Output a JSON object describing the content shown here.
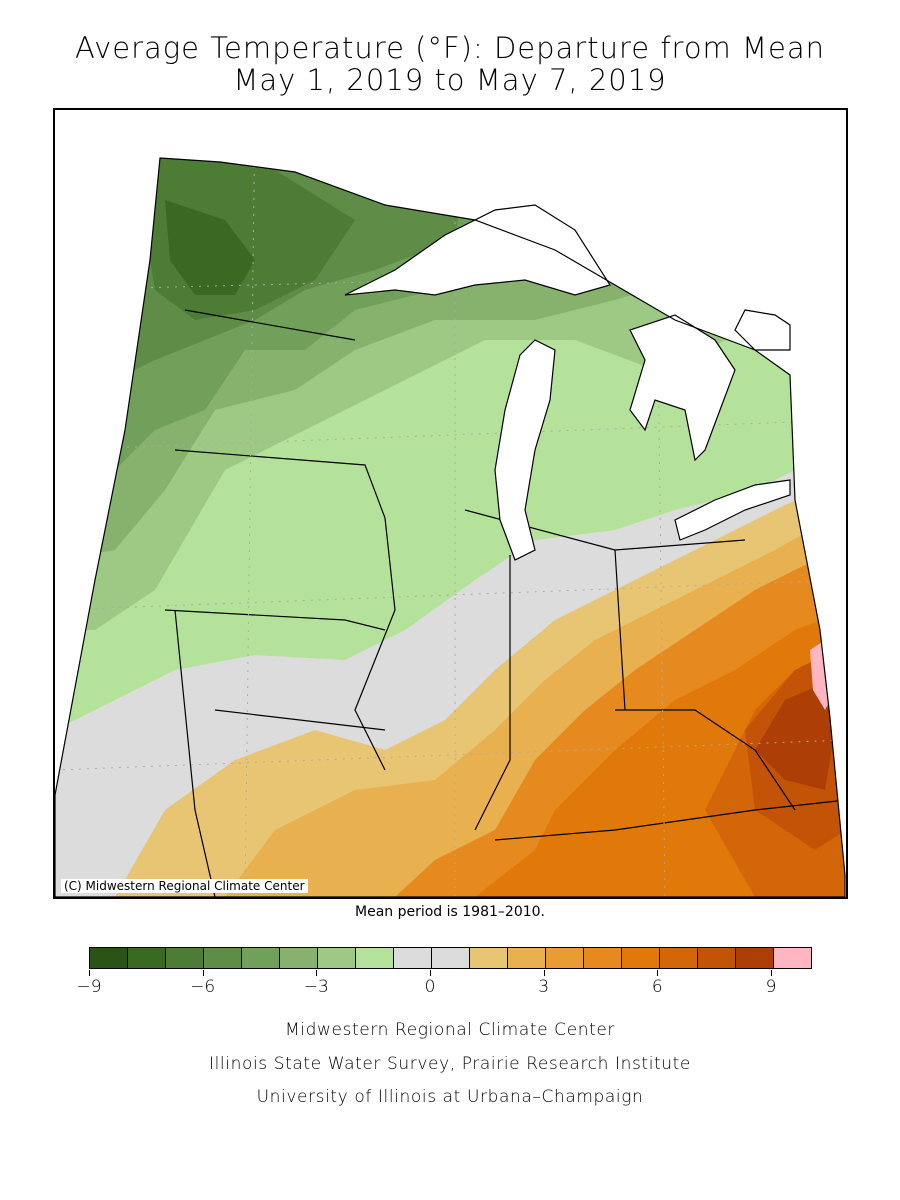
{
  "title_line1": "Average Temperature (°F): Departure from Mean",
  "title_line2": "May 1, 2019 to May 7, 2019",
  "copyright": "(C) Midwestern Regional Climate Center",
  "mean_note": "Mean period is 1981–2010.",
  "legend": {
    "colors": [
      "#2a5416",
      "#3a6a22",
      "#4d7c34",
      "#5f8d47",
      "#71a05a",
      "#86b26d",
      "#9dc984",
      "#b4e29a",
      "#dcdcdc",
      "#dcdcdc",
      "#e8c572",
      "#e8b04e",
      "#e89d34",
      "#e68a1f",
      "#e0780a",
      "#d36608",
      "#c35306",
      "#ad3e05",
      "#ffb6c1"
    ],
    "tick_labels": [
      "−9",
      "−6",
      "−3",
      "0",
      "3",
      "6",
      "9"
    ],
    "tick_values": [
      -9,
      -6,
      -3,
      0,
      3,
      6,
      9
    ]
  },
  "credits": {
    "line1": "Midwestern Regional Climate Center",
    "line2": "Illinois State Water Survey, Prairie Research Institute",
    "line3": "University of Illinois at Urbana–Champaign"
  }
}
